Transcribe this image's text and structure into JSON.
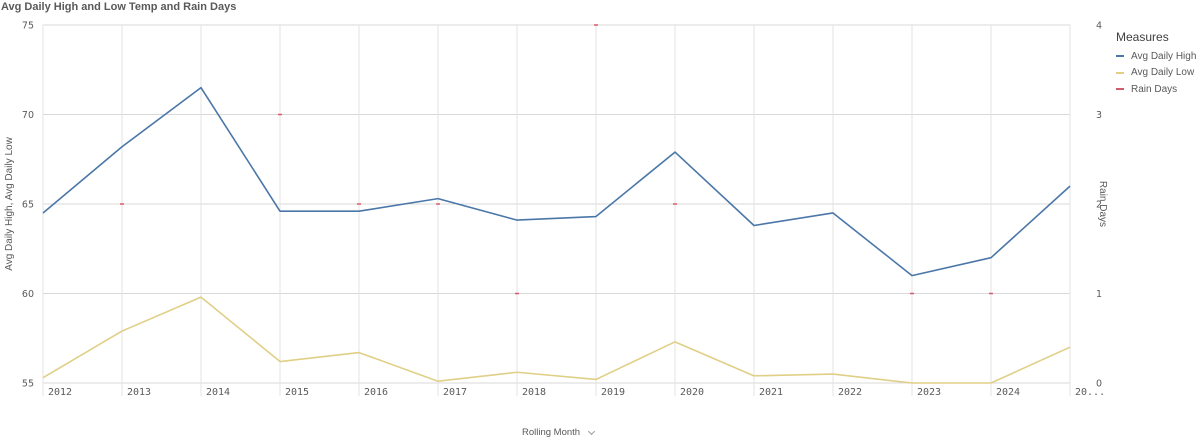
{
  "chart_data": {
    "type": "line",
    "title": "Avg Daily High and Low Temp and Rain Days",
    "xlabel": "Rolling Month",
    "ylabel_left": "Avg Daily High, Avg Daily Low",
    "ylabel_right": "Rain Days",
    "ylim_left": [
      55,
      75
    ],
    "ylim_right": [
      0,
      4
    ],
    "yticks_left": [
      "75",
      "70",
      "65",
      "60",
      "55"
    ],
    "yticks_right": [
      "4",
      "3",
      "2",
      "1",
      "0"
    ],
    "x_tick_labels": [
      "2012",
      "2013",
      "2014",
      "2015",
      "2016",
      "2017",
      "2018",
      "2019",
      "2020",
      "2021",
      "2022",
      "2023",
      "2024",
      "20..."
    ],
    "x_points": 14,
    "grid": true,
    "legend_title": "Measures",
    "legend_position": "right",
    "series": [
      {
        "name": "Avg Daily High",
        "axis": "left",
        "color": "#4a77a8",
        "values": [
          64.5,
          68.2,
          71.5,
          64.6,
          64.6,
          65.3,
          64.1,
          64.3,
          67.9,
          63.8,
          64.5,
          61.0,
          62.0,
          66.0
        ]
      },
      {
        "name": "Avg Daily Low",
        "axis": "left",
        "color": "#e0cf86",
        "values": [
          55.3,
          57.9,
          59.8,
          56.2,
          56.7,
          55.1,
          55.6,
          55.2,
          57.3,
          55.4,
          55.5,
          55.0,
          55.0,
          57.0
        ]
      },
      {
        "name": "Rain Days",
        "axis": "right",
        "color": "#d65a6e",
        "marker": "dash",
        "values": [
          null,
          2,
          null,
          3,
          2,
          2,
          1,
          4,
          2,
          null,
          null,
          1,
          1,
          null
        ]
      }
    ]
  }
}
